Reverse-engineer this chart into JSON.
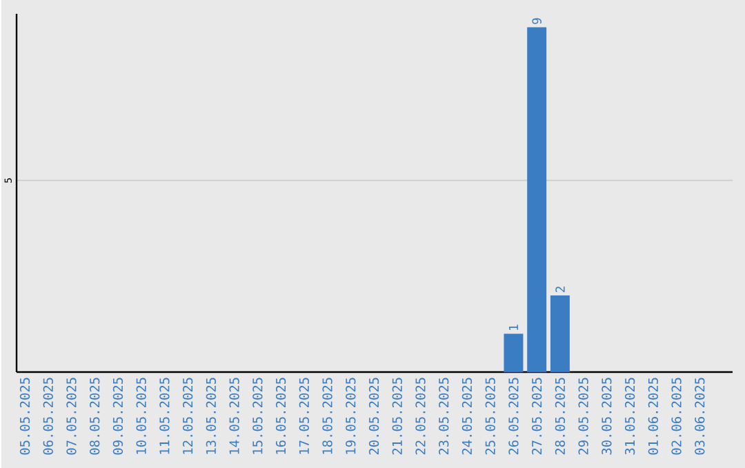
{
  "chart_data": {
    "type": "bar",
    "categories": [
      "05.05.2025",
      "06.05.2025",
      "07.05.2025",
      "08.05.2025",
      "09.05.2025",
      "10.05.2025",
      "11.05.2025",
      "12.05.2025",
      "13.05.2025",
      "14.05.2025",
      "15.05.2025",
      "16.05.2025",
      "17.05.2025",
      "18.05.2025",
      "19.05.2025",
      "20.05.2025",
      "21.05.2025",
      "22.05.2025",
      "23.05.2025",
      "24.05.2025",
      "25.05.2025",
      "26.05.2025",
      "27.05.2025",
      "28.05.2025",
      "29.05.2025",
      "30.05.2025",
      "31.05.2025",
      "01.06.2025",
      "02.06.2025",
      "03.06.2025"
    ],
    "values": [
      null,
      null,
      null,
      null,
      null,
      null,
      null,
      null,
      null,
      null,
      null,
      null,
      null,
      null,
      null,
      null,
      null,
      null,
      null,
      null,
      null,
      1,
      9,
      2,
      null,
      null,
      null,
      null,
      null,
      null
    ],
    "value_labels": [
      null,
      null,
      null,
      null,
      null,
      null,
      null,
      null,
      null,
      null,
      null,
      null,
      null,
      null,
      null,
      null,
      null,
      null,
      null,
      null,
      null,
      "1",
      "9",
      "2",
      null,
      null,
      null,
      null,
      null,
      null
    ],
    "color": "#3a7dc2",
    "ylim": [
      0,
      9.35
    ],
    "yticks": [
      5
    ],
    "grid": "y"
  }
}
